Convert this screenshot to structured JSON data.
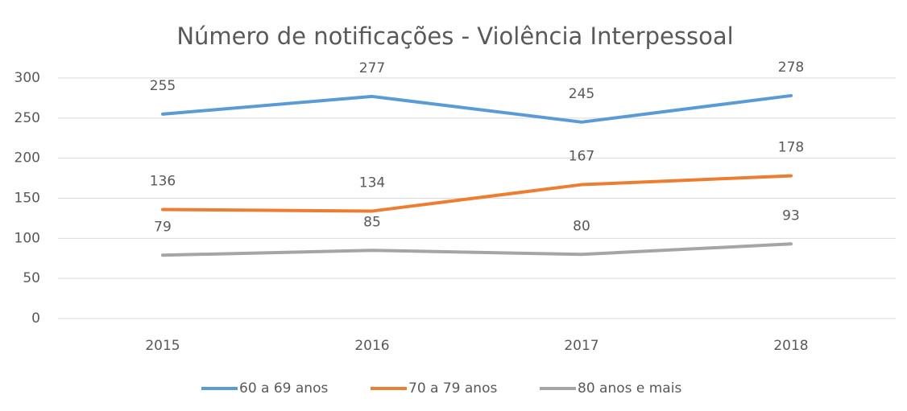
{
  "chart_data": {
    "type": "line",
    "title": "Número de notificações - Violência Interpessoal",
    "categories": [
      "2015",
      "2016",
      "2017",
      "2018"
    ],
    "series": [
      {
        "name": "60 a 69 anos",
        "color": "#5b9bd5",
        "values": [
          255,
          277,
          245,
          278
        ]
      },
      {
        "name": "70 a 79 anos",
        "color": "#ed7d31",
        "values": [
          136,
          134,
          167,
          178
        ]
      },
      {
        "name": "80 anos e mais",
        "color": "#a5a5a5",
        "values": [
          79,
          85,
          80,
          93
        ]
      }
    ],
    "ylim": [
      0,
      300
    ],
    "yticks": [
      0,
      50,
      100,
      150,
      200,
      250,
      300
    ],
    "grid": true,
    "legend": "bottom"
  }
}
